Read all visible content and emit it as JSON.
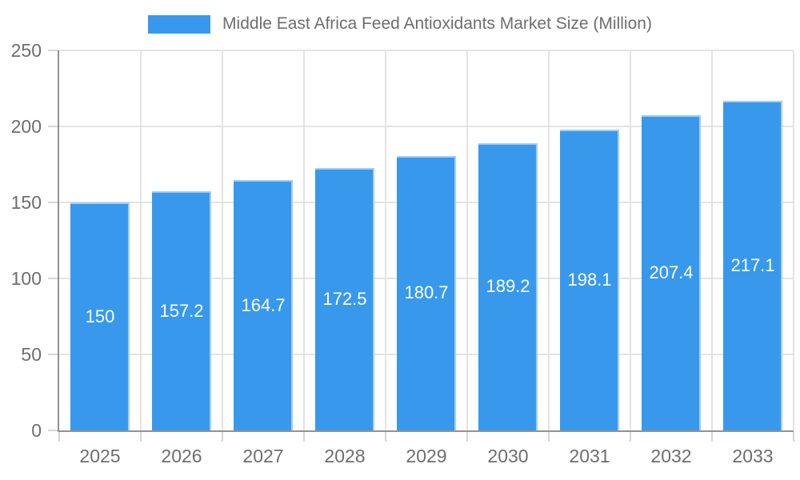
{
  "legend": {
    "label": "Middle East Africa Feed Antioxidants Market Size (Million)"
  },
  "chart_data": {
    "type": "bar",
    "title": "Middle East Africa Feed Antioxidants Market Size (Million)",
    "categories": [
      "2025",
      "2026",
      "2027",
      "2028",
      "2029",
      "2030",
      "2031",
      "2032",
      "2033"
    ],
    "values": [
      150,
      157.2,
      164.7,
      172.5,
      180.7,
      189.2,
      198.1,
      207.4,
      217.1
    ],
    "value_labels": [
      "150",
      "157.2",
      "164.7",
      "172.5",
      "180.7",
      "189.2",
      "198.1",
      "207.4",
      "217.1"
    ],
    "xlabel": "",
    "ylabel": "",
    "ylim": [
      0,
      250
    ],
    "yticks": [
      0,
      50,
      100,
      150,
      200,
      250
    ],
    "grid": true,
    "legend_position": "top-center",
    "colors": {
      "bar": "#3899EC",
      "bar-edge": "#A4CEF3",
      "axis": "#929292",
      "grid": "#E4E4E4",
      "tick": "#D5D5D5",
      "label": "#6E6E6E",
      "value-text": "#FFFFFF",
      "bg": "#FFFFFF"
    }
  }
}
